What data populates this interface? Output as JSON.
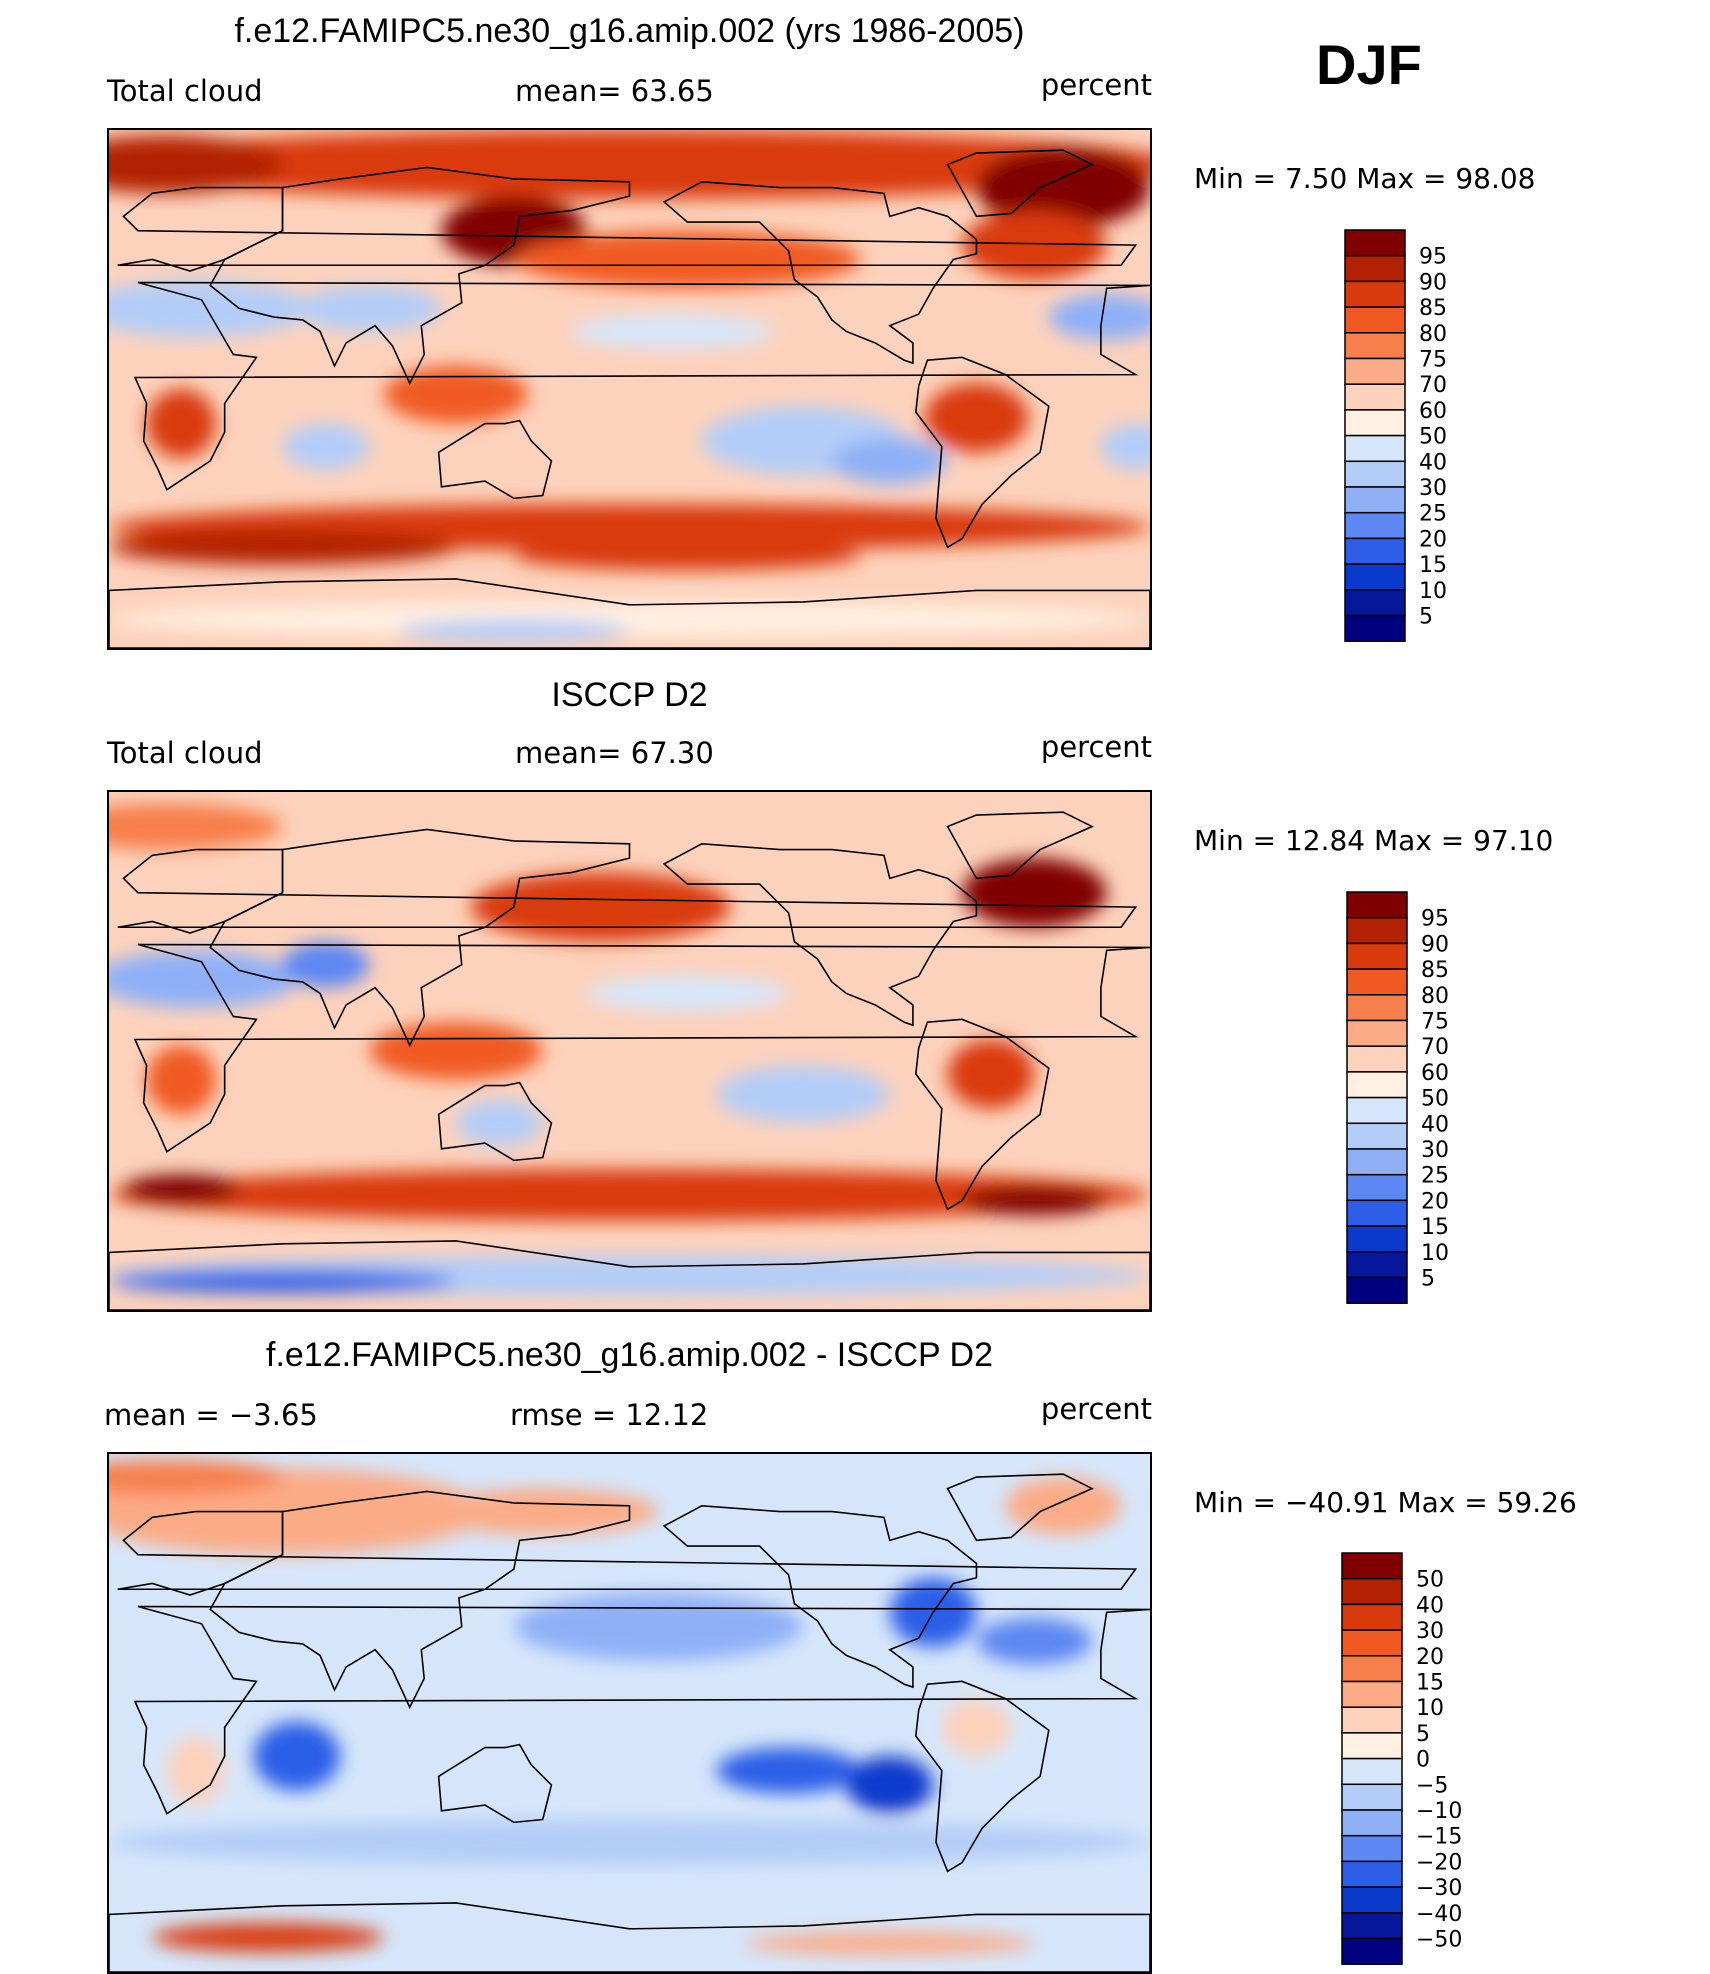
{
  "season": "DJF",
  "panels": [
    {
      "id": "model",
      "title": "f.e12.FAMIPC5.ne30_g16.amip.002 (yrs 1986-2005)",
      "left_label": "Total cloud",
      "center_label": "mean=   63.65",
      "units": "percent",
      "minmax": "Min =    7.50  Max =   98.08",
      "levels": [
        "95",
        "90",
        "85",
        "80",
        "75",
        "70",
        "60",
        "50",
        "40",
        "30",
        "25",
        "20",
        "15",
        "10",
        "5"
      ]
    },
    {
      "id": "obs",
      "title": "ISCCP D2",
      "left_label": "Total cloud",
      "center_label": "mean=   67.30",
      "units": "percent",
      "minmax": "Min =   12.84  Max =   97.10",
      "levels": [
        "95",
        "90",
        "85",
        "80",
        "75",
        "70",
        "60",
        "50",
        "40",
        "30",
        "25",
        "20",
        "15",
        "10",
        "5"
      ]
    },
    {
      "id": "diff",
      "title": "f.e12.FAMIPC5.ne30_g16.amip.002 - ISCCP D2",
      "left_label": "mean =   −3.65",
      "center_label": "rmse =    12.12",
      "units": "percent",
      "minmax": "Min = −40.91  Max =   59.26",
      "levels": [
        "50",
        "40",
        "30",
        "20",
        "15",
        "10",
        "5",
        "0",
        "−5",
        "−10",
        "−15",
        "−20",
        "−30",
        "−40",
        "−50"
      ]
    }
  ],
  "colors": {
    "abs_scale": [
      "#800000",
      "#b22100",
      "#d93a0c",
      "#f05a22",
      "#f77f4b",
      "#fbab86",
      "#fdd2bc",
      "#fff0e2",
      "#d6e6fa",
      "#b4cdf8",
      "#8fb0f7",
      "#5d87f2",
      "#2c5ee8",
      "#0a3acc",
      "#06179c",
      "#000080"
    ],
    "diff_scale": [
      "#800000",
      "#b22100",
      "#d93a0c",
      "#f05a22",
      "#f77f4b",
      "#fbab86",
      "#fdd2bc",
      "#fff0e2",
      "#d6e6fa",
      "#b4cdf8",
      "#8fb0f7",
      "#5d87f2",
      "#2c5ee8",
      "#0a3acc",
      "#06179c",
      "#000080"
    ]
  },
  "chart_data": [
    {
      "type": "heatmap",
      "title": "f.e12.FAMIPC5.ne30_g16.amip.002 (yrs 1986-2005)",
      "variable": "Total cloud",
      "units": "percent",
      "mean": 63.65,
      "min": 7.5,
      "max": 98.08,
      "contour_levels": [
        5,
        10,
        15,
        20,
        25,
        30,
        40,
        50,
        60,
        70,
        75,
        80,
        85,
        90,
        95
      ]
    },
    {
      "type": "heatmap",
      "title": "ISCCP D2",
      "variable": "Total cloud",
      "units": "percent",
      "mean": 67.3,
      "min": 12.84,
      "max": 97.1,
      "contour_levels": [
        5,
        10,
        15,
        20,
        25,
        30,
        40,
        50,
        60,
        70,
        75,
        80,
        85,
        90,
        95
      ]
    },
    {
      "type": "heatmap",
      "title": "f.e12.FAMIPC5.ne30_g16.amip.002 - ISCCP D2",
      "units": "percent",
      "mean": -3.65,
      "rmse": 12.12,
      "min": -40.91,
      "max": 59.26,
      "contour_levels": [
        -50,
        -40,
        -30,
        -20,
        -15,
        -10,
        -5,
        0,
        5,
        10,
        15,
        20,
        30,
        40,
        50
      ]
    }
  ]
}
